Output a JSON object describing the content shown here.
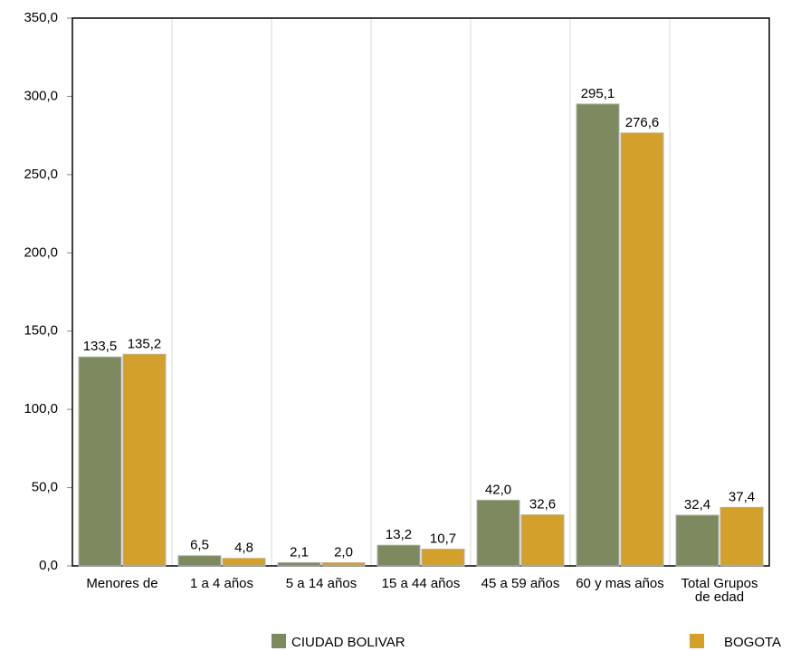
{
  "chart_data": {
    "type": "bar",
    "categories": [
      "Menores de",
      "1 a 4 años",
      "5 a 14 años",
      "15 a 44 años",
      "45 a 59 años",
      "60 y mas años",
      "Total Grupos de edad"
    ],
    "series": [
      {
        "name": "CIUDAD BOLIVAR",
        "color": "#7d8a5f",
        "values": [
          133.5,
          6.5,
          2.1,
          13.2,
          42.0,
          295.1,
          32.4
        ],
        "value_labels": [
          "133,5",
          "6,5",
          "2,1",
          "13,2",
          "42,0",
          "295,1",
          "32,4"
        ]
      },
      {
        "name": "BOGOTA",
        "color": "#d4a02c",
        "values": [
          135.2,
          4.8,
          2.0,
          10.7,
          32.6,
          276.6,
          37.4
        ],
        "value_labels": [
          "135,2",
          "4,8",
          "2,0",
          "10,7",
          "32,6",
          "276,6",
          "37,4"
        ]
      }
    ],
    "ylim": [
      0,
      350
    ],
    "yticks": [
      {
        "value": 0,
        "label": "0,0"
      },
      {
        "value": 50,
        "label": "50,0"
      },
      {
        "value": 100,
        "label": "100,0"
      },
      {
        "value": 150,
        "label": "150,0"
      },
      {
        "value": 200,
        "label": "200,0"
      },
      {
        "value": 250,
        "label": "250,0"
      },
      {
        "value": 300,
        "label": "300,0"
      },
      {
        "value": 350,
        "label": "350,0"
      }
    ],
    "grid": true,
    "legend": "bottom"
  }
}
